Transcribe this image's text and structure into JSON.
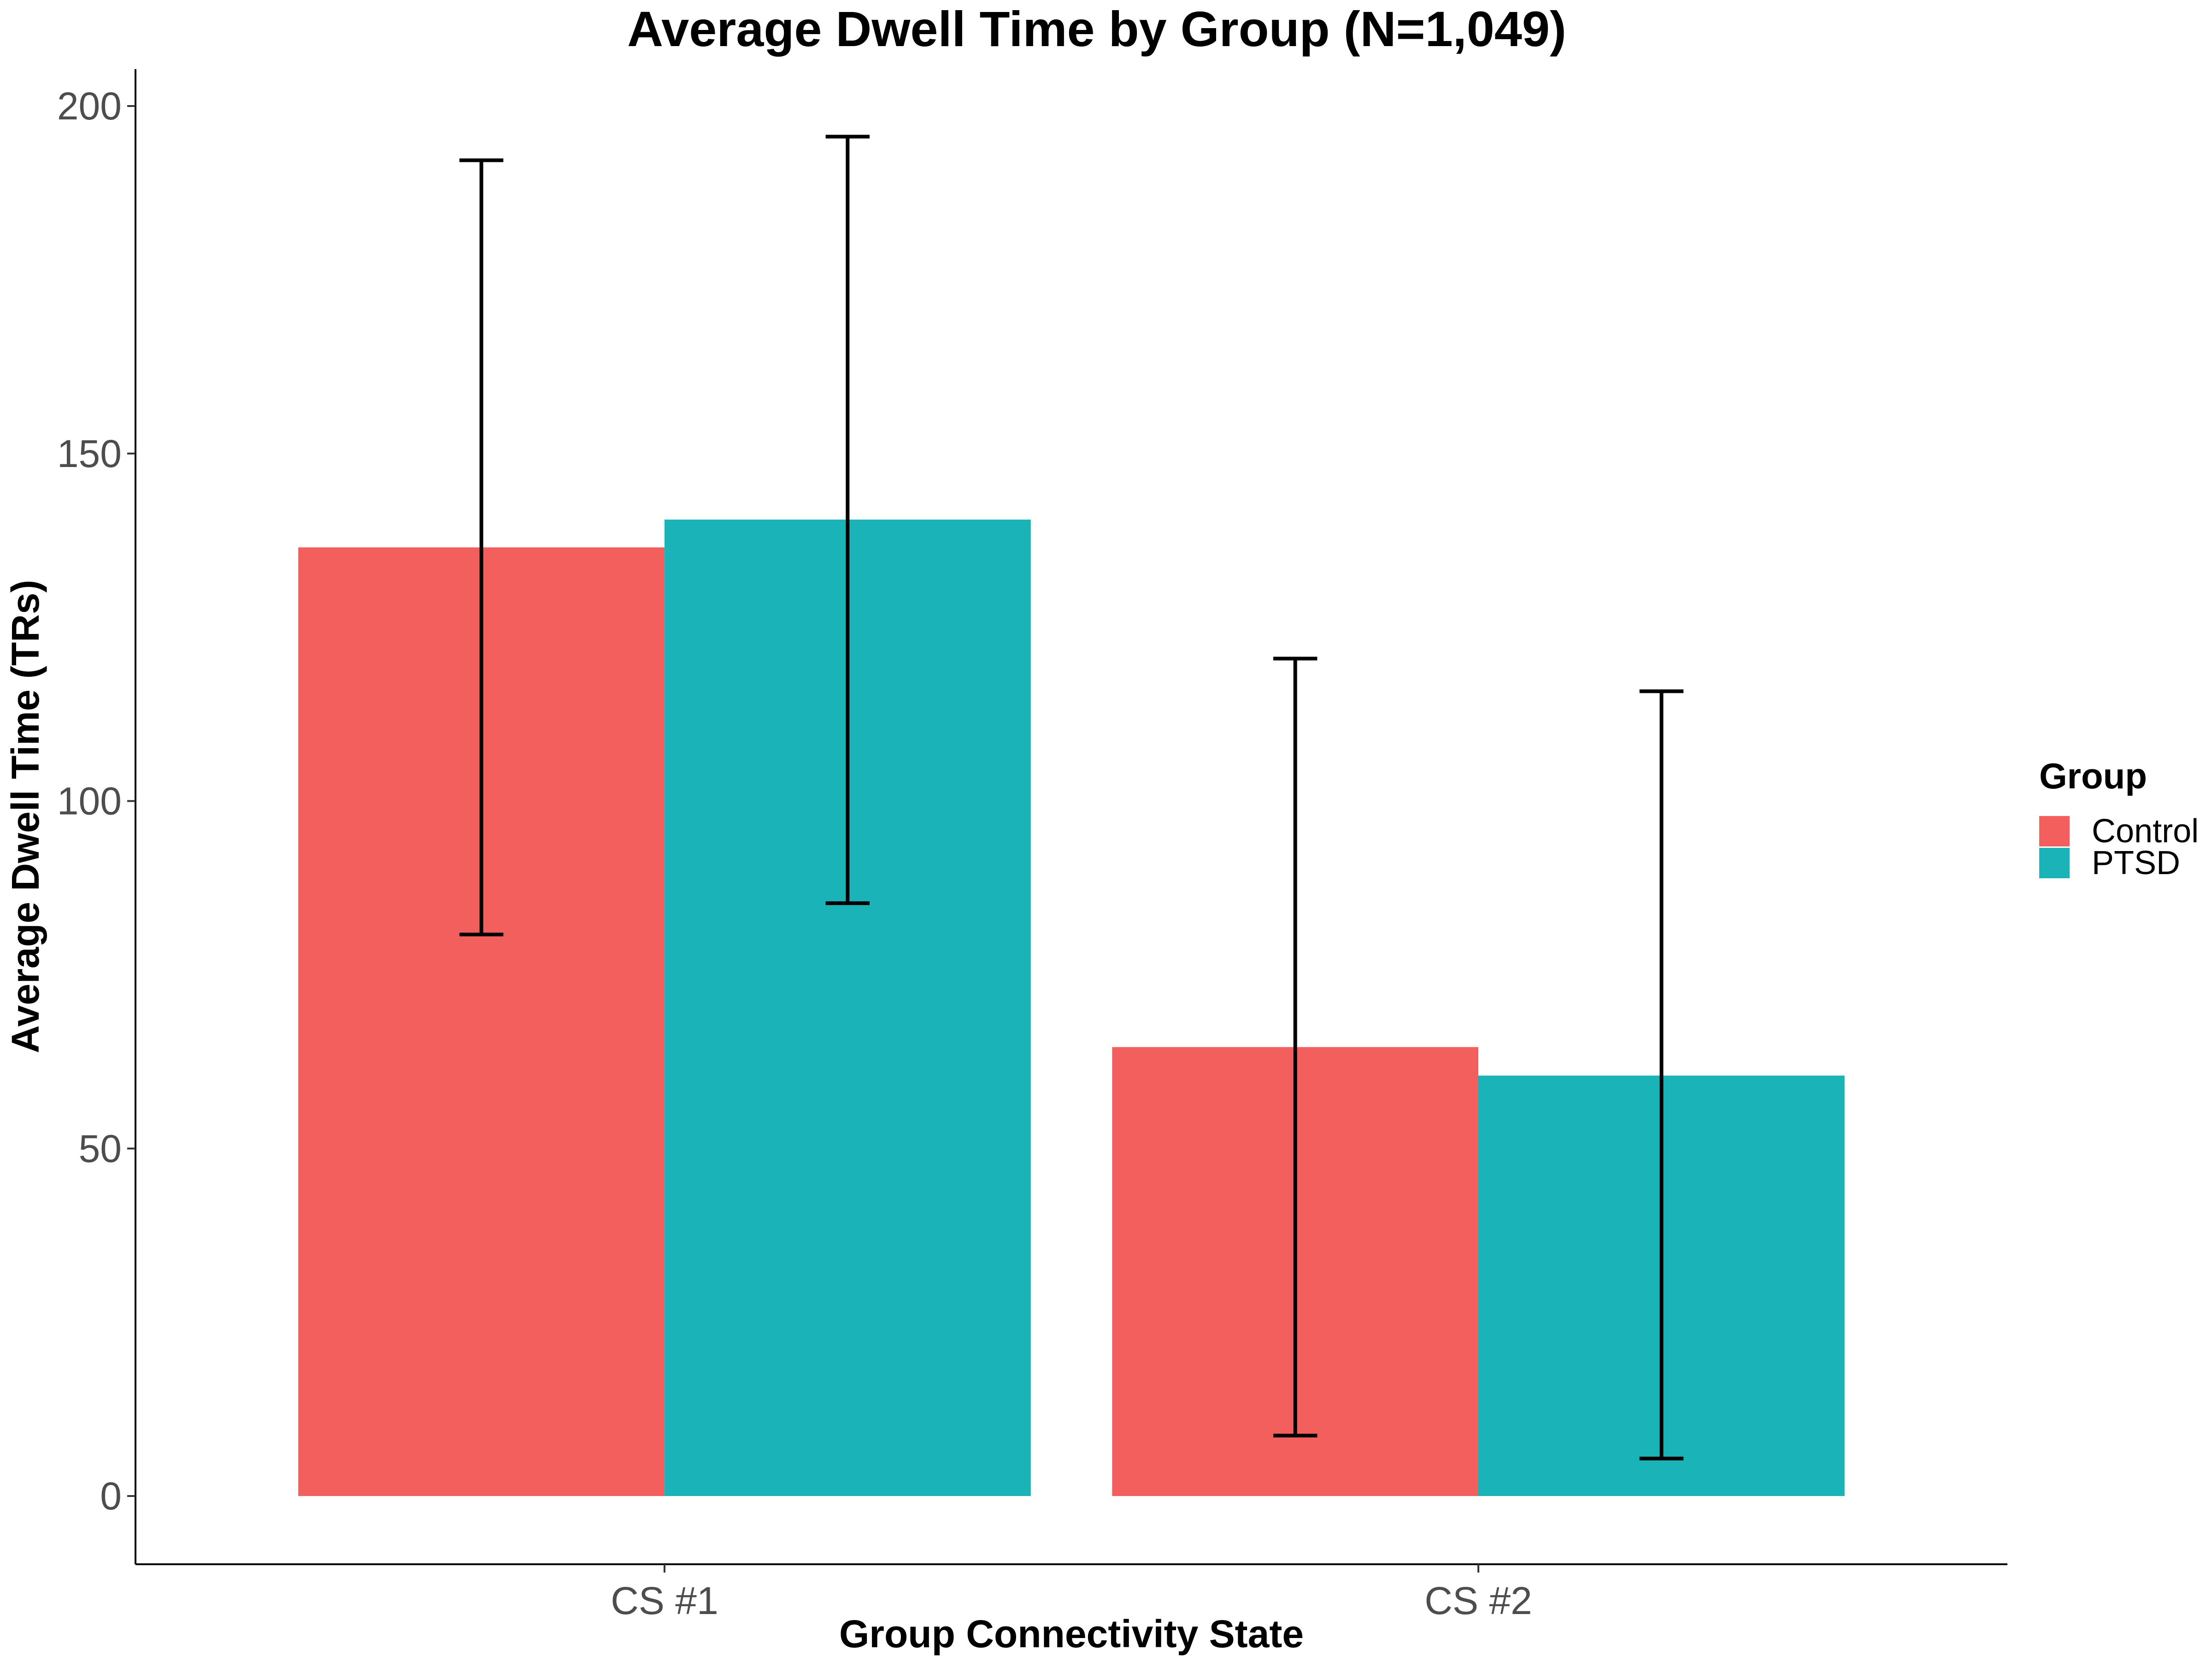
{
  "chart_data": {
    "type": "bar",
    "title": "Average Dwell Time by Group (N=1,049)",
    "xlabel": "Group Connectivity State",
    "ylabel": "Average Dwell Time (TRs)",
    "categories": [
      "CS #1",
      "CS #2"
    ],
    "series": [
      {
        "name": "Control",
        "color": "#F25F5C",
        "values": [
          136.5,
          64.6
        ],
        "error_low": [
          80.8,
          8.7
        ],
        "error_high": [
          192.2,
          120.5
        ]
      },
      {
        "name": "PTSD",
        "color": "#1AB3B7",
        "values": [
          140.5,
          60.5
        ],
        "error_low": [
          85.3,
          5.4
        ],
        "error_high": [
          195.6,
          115.8
        ]
      }
    ],
    "ylim": [
      -10,
      205
    ],
    "yticks": [
      0,
      50,
      100,
      150,
      200
    ],
    "grid": false,
    "legend": {
      "title": "Group",
      "position": "right"
    }
  }
}
